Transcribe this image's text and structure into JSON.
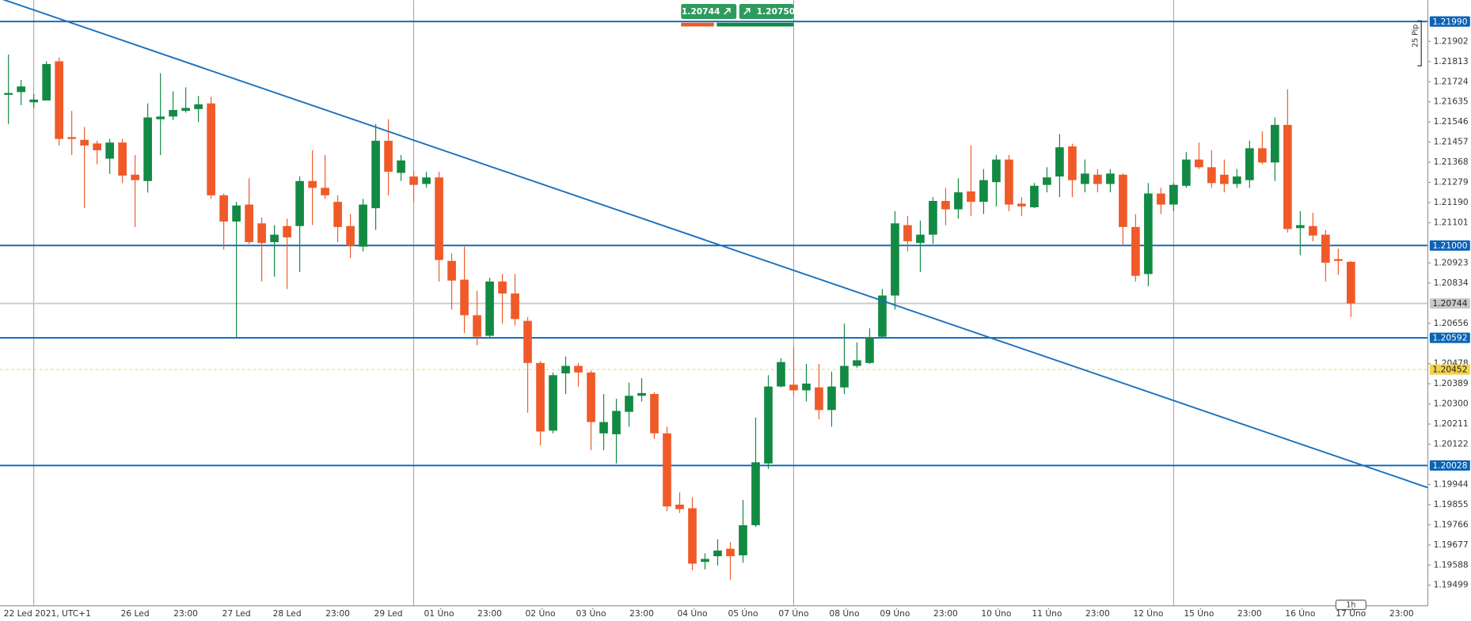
{
  "chart_data": {
    "type": "candlestick",
    "bid": "1.20744",
    "ask": "1.20750",
    "pip_ruler": "25 Pip",
    "timeframe": "1h",
    "up_color": "#138a43",
    "down_color": "#f05a28",
    "ylim": [
      1.19408,
      1.22084
    ],
    "yticks": [
      1.21902,
      1.21813,
      1.21724,
      1.21635,
      1.21546,
      1.21457,
      1.21368,
      1.21279,
      {
        "value": 1.2119,
        "label": "1.21190"
      },
      1.21101,
      1.20923,
      1.20834,
      1.20656,
      1.20478,
      1.20389,
      {
        "value": 1.203,
        "label": "1.20300"
      },
      1.20211,
      1.20122,
      1.19944,
      1.19855,
      1.19766,
      1.19677,
      1.19588,
      1.19499
    ],
    "x_labels": [
      "22 Led 2021, UTC+1",
      "26 Led",
      "23:00",
      "27 Led",
      "28 Led",
      "23:00",
      "29 Led",
      "01 Úno",
      "23:00",
      "02 Úno",
      "03 Úno",
      "23:00",
      "04 Úno",
      "05 Úno",
      "07 Úno",
      "08 Úno",
      "09 Úno",
      "23:00",
      "10 Úno",
      "11 Úno",
      "23:00",
      "12 Úno",
      "15 Úno",
      "23:00",
      "16 Úno",
      "17 Úno",
      "23:00"
    ],
    "levels": [
      {
        "value": 1.2199,
        "label": "1.21990",
        "color": "#0a63b5",
        "text_color": "#ffffff"
      },
      {
        "value": 1.21,
        "label": "1.21000",
        "color": "#0a63b5",
        "text_color": "#ffffff"
      },
      {
        "value": 1.20744,
        "color": "#c8c8c8",
        "text_color": "#222222"
      },
      {
        "value": 1.20592,
        "color": "#0a63b5",
        "text_color": "#ffffff"
      },
      {
        "value": 1.20452,
        "color": "#f2d24b",
        "text_color": "#222222"
      },
      {
        "value": 1.20028,
        "label": "1.20028",
        "color": "#0a63b5",
        "text_color": "#ffffff"
      }
    ],
    "trendline": {
      "values": [
        1.22092,
        1.1993
      ],
      "color": "#1a6fc0"
    },
    "open": [
      1.21666,
      1.21678,
      1.21633,
      1.21641,
      1.21814,
      1.21479,
      1.21467,
      1.21451,
      1.21384,
      1.21455,
      1.21313,
      1.21285,
      1.21558,
      1.2157,
      1.21595,
      1.21603,
      1.21628,
      1.21222,
      1.21106,
      1.21181,
      1.21098,
      1.21015,
      1.21086,
      1.21086,
      1.21285,
      1.21255,
      1.21193,
      1.21086,
      1.20995,
      1.21165,
      1.21463,
      1.21321,
      1.21305,
      1.21272,
      1.21301,
      1.20932,
      1.20849,
      1.20692,
      1.20601,
      1.20841,
      1.20788,
      1.20667,
      1.20481,
      1.20182,
      1.20435,
      1.20468,
      1.20439,
      1.2017,
      1.20166,
      1.20265,
      1.20336,
      1.20344,
      1.2017,
      1.19855,
      1.19839,
      1.19602,
      1.19627,
      1.1966,
      1.19631,
      1.19764,
      1.20037,
      1.20377,
      1.20385,
      1.2036,
      1.20373,
      1.20273,
      1.20373,
      1.20468,
      1.20481,
      1.20597,
      1.20779,
      1.2109,
      1.21011,
      1.21048,
      1.21197,
      1.2116,
      1.21239,
      1.21193,
      1.2128,
      1.2138,
      1.21185,
      1.21169,
      1.21268,
      1.21305,
      1.21438,
      1.21272,
      1.21313,
      1.21272,
      1.21313,
      1.21082,
      1.20874,
      1.2123,
      1.21181,
      1.21264,
      1.2138,
      1.21346,
      1.21313,
      1.21272,
      1.21289,
      1.2143,
      1.21367,
      1.21533,
      1.21077,
      1.21086,
      1.21048,
      1.2094,
      1.20928
    ],
    "high": [
      1.21844,
      1.21732,
      1.2167,
      1.21814,
      1.21831,
      1.21595,
      1.21524,
      1.21463,
      1.21471,
      1.21471,
      1.214,
      1.21628,
      1.21761,
      1.21682,
      1.21699,
      1.21661,
      1.21657,
      1.2123,
      1.21193,
      1.21297,
      1.21123,
      1.2109,
      1.21119,
      1.21305,
      1.21421,
      1.214,
      1.21222,
      1.21139,
      1.21206,
      1.21537,
      1.21558,
      1.214,
      1.2133,
      1.21326,
      1.21326,
      1.20965,
      1.20995,
      1.208,
      1.20858,
      1.20874,
      1.20874,
      1.20684,
      1.20489,
      1.20439,
      1.2051,
      1.20481,
      1.20448,
      1.20344,
      1.20323,
      1.20394,
      1.20414,
      1.20352,
      1.20199,
      1.19909,
      1.19888,
      1.1964,
      1.19702,
      1.19689,
      1.19876,
      1.2024,
      1.20427,
      1.20502,
      1.20551,
      1.20477,
      1.20477,
      1.20443,
      1.20655,
      1.20572,
      1.20634,
      1.20808,
      1.21152,
      1.21131,
      1.2111,
      1.21214,
      1.21255,
      1.21297,
      1.21442,
      1.21338,
      1.214,
      1.214,
      1.21214,
      1.21276,
      1.21346,
      1.21492,
      1.2145,
      1.2138,
      1.21338,
      1.21338,
      1.21318,
      1.21139,
      1.21276,
      1.21255,
      1.21276,
      1.21413,
      1.21455,
      1.21421,
      1.2138,
      1.21338,
      1.21463,
      1.21504,
      1.21566,
      1.2169,
      1.21152,
      1.21144,
      1.21069,
      1.20986,
      1.20932
    ],
    "low": [
      1.21537,
      1.2162,
      1.21607,
      1.21641,
      1.21442,
      1.214,
      1.21165,
      1.21359,
      1.21317,
      1.21276,
      1.21082,
      1.21234,
      1.214,
      1.21554,
      1.21587,
      1.21545,
      1.21206,
      1.20982,
      1.20593,
      1.21007,
      1.20841,
      1.20862,
      1.20808,
      1.20883,
      1.2109,
      1.21206,
      1.21015,
      1.20944,
      1.20974,
      1.21069,
      1.21222,
      1.21285,
      1.21193,
      1.21255,
      1.20841,
      1.20717,
      1.20613,
      1.20559,
      1.20593,
      1.20655,
      1.20646,
      1.20261,
      1.20116,
      1.2017,
      1.20344,
      1.20377,
      1.20095,
      1.20095,
      1.20037,
      1.20199,
      1.20311,
      1.20145,
      1.19826,
      1.19818,
      1.19565,
      1.19569,
      1.19586,
      1.19523,
      1.19598,
      1.19756,
      1.20013,
      1.20373,
      1.20336,
      1.20311,
      1.20232,
      1.20199,
      1.20344,
      1.2046,
      1.20477,
      1.20593,
      1.20717,
      1.20974,
      1.20883,
      1.21007,
      1.2109,
      1.21119,
      1.21131,
      1.21139,
      1.21173,
      1.21152,
      1.21131,
      1.21165,
      1.21235,
      1.21214,
      1.21214,
      1.21235,
      1.21235,
      1.21235,
      1.20999,
      1.20841,
      1.2082,
      1.21139,
      1.21152,
      1.21255,
      1.21338,
      1.21255,
      1.21235,
      1.21255,
      1.21255,
      1.21359,
      1.21285,
      1.21057,
      1.20957,
      1.21019,
      1.20841,
      1.2087,
      1.20684
    ],
    "close": [
      1.21674,
      1.21703,
      1.21645,
      1.21802,
      1.21471,
      1.21471,
      1.21442,
      1.21421,
      1.21455,
      1.21309,
      1.21289,
      1.21566,
      1.2157,
      1.21599,
      1.21608,
      1.21624,
      1.21222,
      1.21106,
      1.21177,
      1.21015,
      1.21011,
      1.21048,
      1.21036,
      1.21285,
      1.21255,
      1.21222,
      1.21082,
      1.20999,
      1.21181,
      1.21463,
      1.21326,
      1.21376,
      1.21268,
      1.21301,
      1.20936,
      1.20845,
      1.20692,
      1.20597,
      1.20841,
      1.20788,
      1.20675,
      1.20481,
      1.20178,
      1.20427,
      1.20468,
      1.20439,
      1.2022,
      1.2022,
      1.20269,
      1.20336,
      1.20348,
      1.2017,
      1.19847,
      1.19835,
      1.19594,
      1.19615,
      1.19652,
      1.19627,
      1.19764,
      1.20042,
      1.20377,
      1.20485,
      1.2036,
      1.2039,
      1.20273,
      1.20377,
      1.20468,
      1.20493,
      1.20593,
      1.20779,
      1.21098,
      1.21019,
      1.21048,
      1.21197,
      1.2116,
      1.21235,
      1.21193,
      1.21289,
      1.2138,
      1.21181,
      1.21173,
      1.21264,
      1.21301,
      1.21434,
      1.21289,
      1.21318,
      1.21272,
      1.21318,
      1.21082,
      1.20866,
      1.2123,
      1.21181,
      1.21268,
      1.2138,
      1.21346,
      1.21276,
      1.21272,
      1.21305,
      1.2143,
      1.21367,
      1.21533,
      1.21073,
      1.2109,
      1.21044,
      1.20924,
      1.20932,
      1.20744
    ]
  }
}
